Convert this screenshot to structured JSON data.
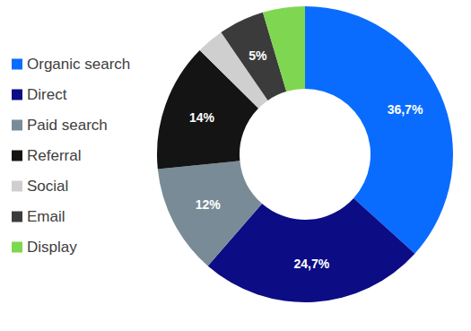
{
  "chart_data": {
    "type": "donut",
    "categories": [
      "Organic search",
      "Direct",
      "Paid search",
      "Referral",
      "Social",
      "Email",
      "Display"
    ],
    "values": [
      36.7,
      24.7,
      12,
      14,
      3,
      5,
      4.6
    ],
    "value_labels": [
      "36,7%",
      "24,7%",
      "12%",
      "14%",
      null,
      "5%",
      null
    ],
    "colors": [
      "#0a6cff",
      "#0c0c85",
      "#798b96",
      "#141414",
      "#cfcfcf",
      "#3b3b3b",
      "#7fd651"
    ],
    "data_labels": true,
    "legend": "left"
  }
}
